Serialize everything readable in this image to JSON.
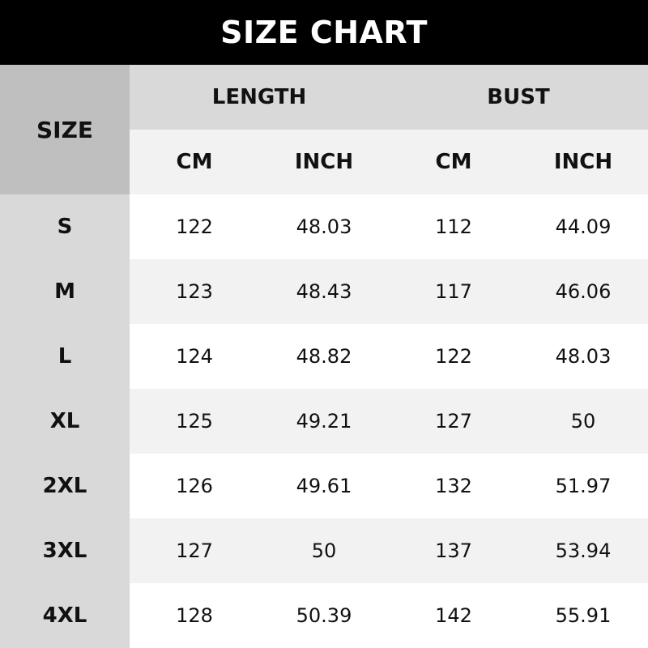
{
  "title": "SIZE CHART",
  "headers": {
    "size": "SIZE",
    "length": "LENGTH",
    "bust": "BUST",
    "units": [
      "CM",
      "INCH",
      "CM",
      "INCH"
    ]
  },
  "rows": [
    {
      "size": "S",
      "length_cm": "122",
      "length_in": "48.03",
      "bust_cm": "112",
      "bust_in": "44.09"
    },
    {
      "size": "M",
      "length_cm": "123",
      "length_in": "48.43",
      "bust_cm": "117",
      "bust_in": "46.06"
    },
    {
      "size": "L",
      "length_cm": "124",
      "length_in": "48.82",
      "bust_cm": "122",
      "bust_in": "48.03"
    },
    {
      "size": "XL",
      "length_cm": "125",
      "length_in": "49.21",
      "bust_cm": "127",
      "bust_in": "50"
    },
    {
      "size": "2XL",
      "length_cm": "126",
      "length_in": "49.61",
      "bust_cm": "132",
      "bust_in": "51.97"
    },
    {
      "size": "3XL",
      "length_cm": "127",
      "length_in": "50",
      "bust_cm": "137",
      "bust_in": "53.94"
    },
    {
      "size": "4XL",
      "length_cm": "128",
      "length_in": "50.39",
      "bust_cm": "142",
      "bust_in": "55.91"
    }
  ]
}
